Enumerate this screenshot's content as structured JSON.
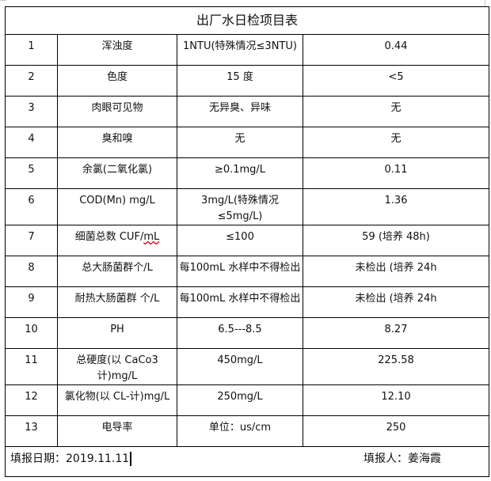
{
  "title": "出厂水日检项目表",
  "rows": [
    {
      "no": "1",
      "item": "浑浊度",
      "standard": "1NTU(特殊情况≤3NTU)",
      "result": "0.44"
    },
    {
      "no": "2",
      "item": "色度",
      "standard": "15 度",
      "result": "<5"
    },
    {
      "no": "3",
      "item": "肉眼可见物",
      "standard": "无异臭、异味",
      "result": "无"
    },
    {
      "no": "4",
      "item": "臭和嗅",
      "standard": "无",
      "result": "无"
    },
    {
      "no": "5",
      "item": "余氯(二氧化氯)",
      "standard": "≥0.1mg/L",
      "result": "0.11"
    },
    {
      "no": "6",
      "item": "COD(Mn)  mg/L",
      "standard": "3mg/L(特殊情况≤5mg/L)",
      "result": "1.36"
    },
    {
      "no": "7",
      "item": "细菌总数 CUF/",
      "item_unit": "mL",
      "standard": "≤100",
      "result": "59 (培养 48h)"
    },
    {
      "no": "8",
      "item": "总大肠菌群个/L",
      "standard": "每100mL 水样中不得检出",
      "result": "未检出 (培养 24h"
    },
    {
      "no": "9",
      "item": "耐热大肠菌群 个/L",
      "standard": "每100mL 水样中不得检出",
      "result": "未检出 (培养 24h"
    },
    {
      "no": "10",
      "item": "PH",
      "standard": "6.5---8.5",
      "result": "8.27"
    },
    {
      "no": "11",
      "item": "总硬度(以 CaCo3 计)mg/L",
      "standard": "450mg/L",
      "result": "225.58"
    },
    {
      "no": "12",
      "item": "氯化物(以 CL-计)mg/L",
      "standard": "250mg/L",
      "result": "12.10"
    },
    {
      "no": "13",
      "item": "电导率",
      "standard": "单位：us/cm",
      "result": "250"
    }
  ],
  "footer": {
    "date_label": "填报日期：2019.11.11",
    "reporter_label": "填报人：姜海霞"
  }
}
